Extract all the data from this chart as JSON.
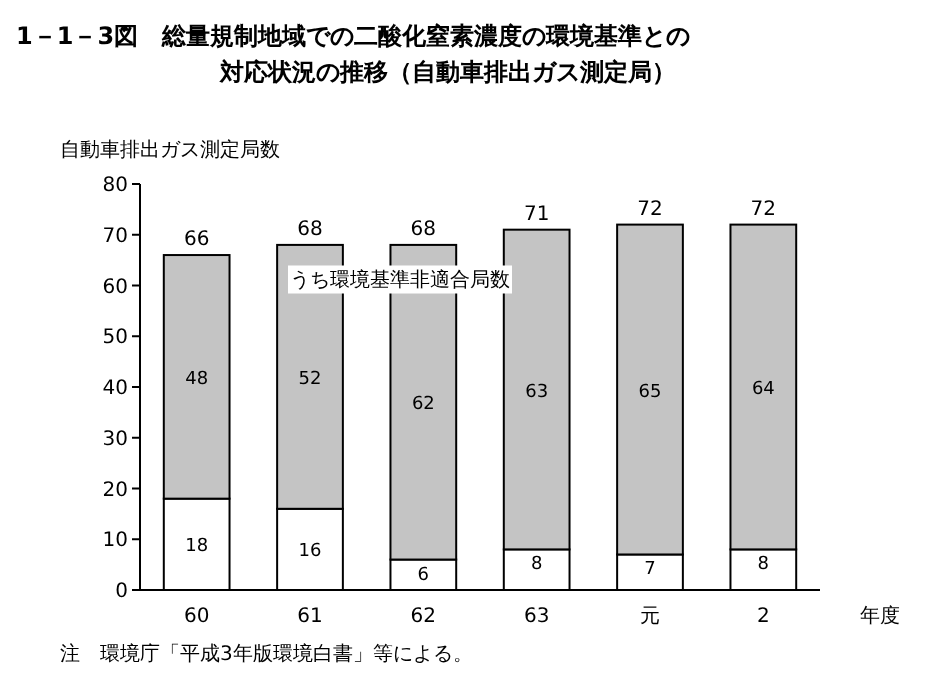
{
  "chart_data": {
    "type": "bar",
    "title": "1－1－3図　総量規制地域での二酸化窒素濃度の環境基準との対応状況の推移（自動車排出ガス測定局）",
    "ylabel": "自動車排出ガス測定局数",
    "xlabel": "年度",
    "categories": [
      "60",
      "61",
      "62",
      "63",
      "元",
      "2"
    ],
    "stacked": true,
    "series": [
      {
        "color": "#ffffff",
        "values": [
          18,
          16,
          6,
          8,
          7,
          8
        ]
      },
      {
        "name": "うち環境基準非適合局数",
        "color": "#c4c4c4",
        "values": [
          48,
          52,
          62,
          63,
          65,
          64
        ]
      }
    ],
    "data_labels": true,
    "totals": [
      "66",
      "68",
      "68",
      "71",
      "72",
      "72"
    ],
    "ylim": [
      0,
      80
    ],
    "yticks": [
      0,
      10,
      20,
      30,
      40,
      50,
      60,
      70,
      80
    ],
    "annotations": [
      "注　環境庁「平成3年版環境白書」等による。"
    ]
  }
}
